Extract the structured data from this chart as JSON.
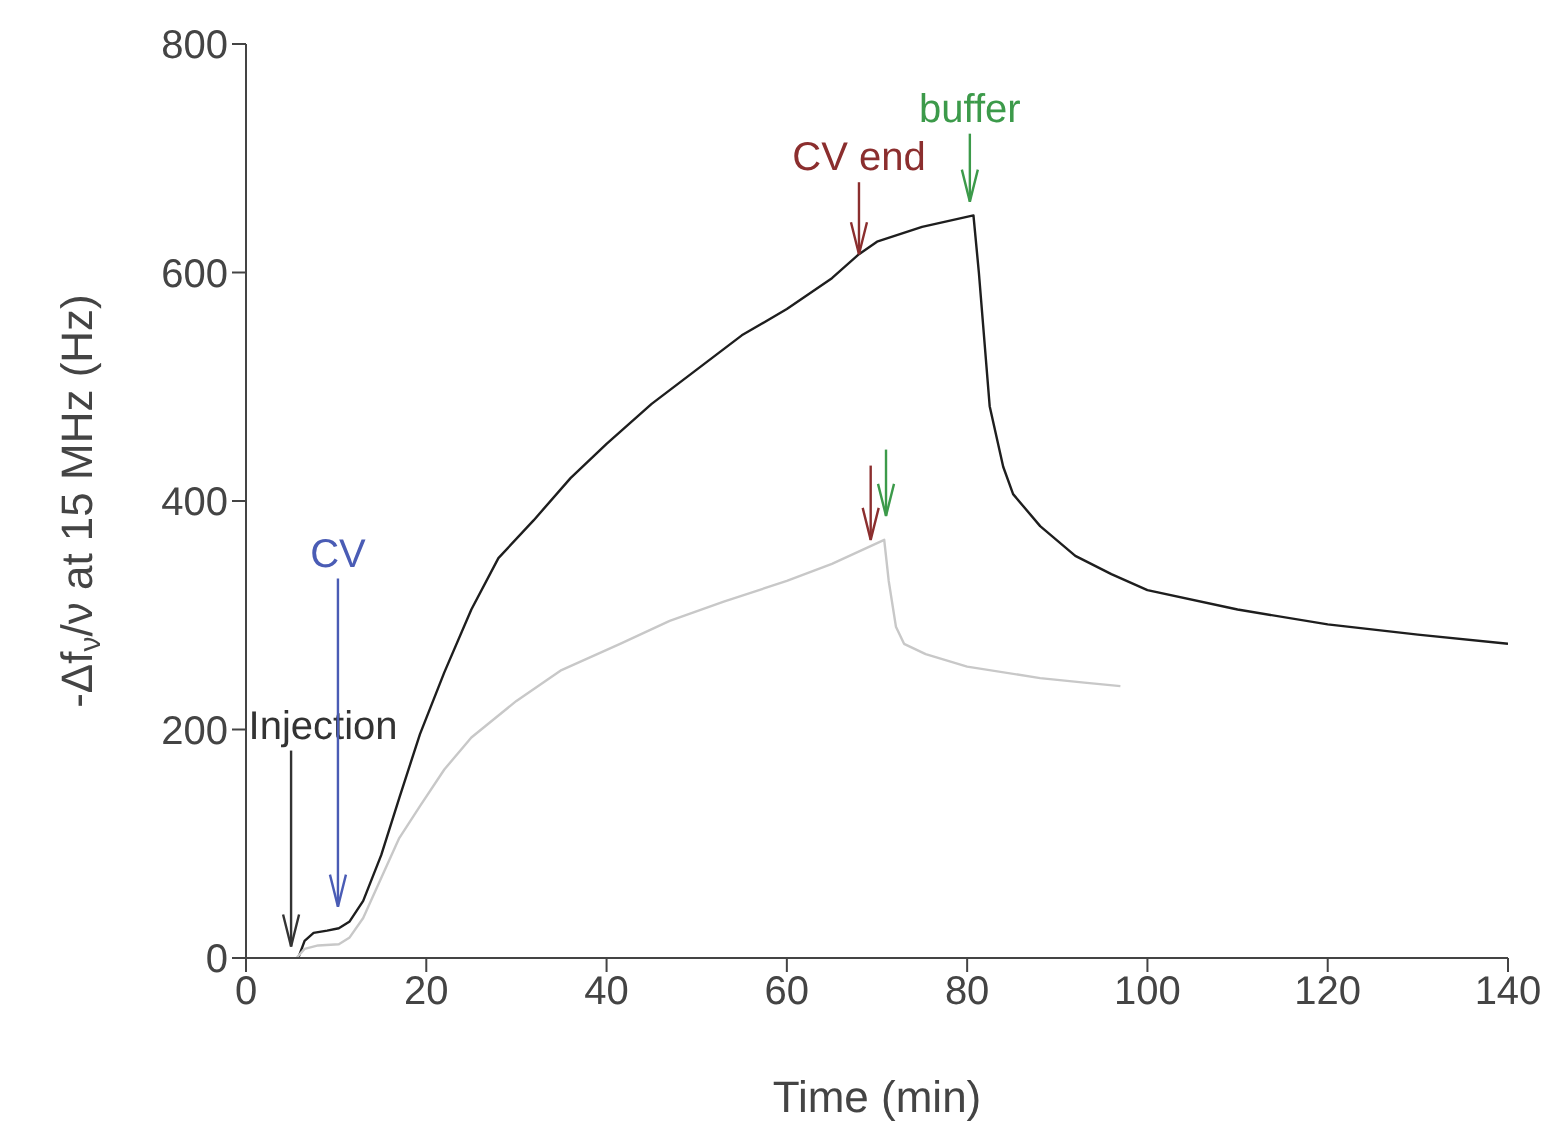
{
  "chart_data": {
    "type": "line",
    "xlabel": "Time (min)",
    "ylabel": "-Δf$_{ν}$/ν at 15 MHz (Hz)",
    "xlim": [
      0,
      140
    ],
    "xticks": [
      0,
      20,
      40,
      60,
      80,
      100,
      120,
      140
    ],
    "ylim": [
      0,
      800
    ],
    "yticks": [
      0,
      200,
      400,
      600,
      800
    ],
    "marker": "none",
    "line_style": "solid",
    "series": [
      {
        "color": "#1e1e1e",
        "x": [
          5.8,
          6.5,
          7.5,
          9,
          10.3,
          11.5,
          13,
          15,
          17,
          19.3,
          22,
          25,
          28,
          31.9,
          36,
          40,
          45,
          50,
          55,
          60,
          65,
          68,
          70,
          75,
          80.7,
          81.3,
          82.5,
          84,
          85.1,
          88.1,
          92,
          96,
          100,
          110,
          120,
          130,
          140
        ],
        "values": [
          0,
          15,
          22,
          24,
          26,
          32,
          50,
          90,
          140,
          196,
          250,
          305,
          350,
          383,
          420,
          450,
          485,
          515,
          545,
          568,
          595,
          616,
          627,
          640,
          650,
          600,
          483,
          430,
          406,
          378,
          352,
          336,
          322,
          305,
          292,
          283,
          275
        ]
      },
      {
        "color": "#c8c8c8",
        "x": [
          5.6,
          6.5,
          8,
          10.3,
          11.5,
          13,
          15,
          17,
          19.3,
          22,
          25,
          30,
          35,
          41.5,
          47,
          53,
          60,
          65,
          70.8,
          71.3,
          72.1,
          73,
          75.4,
          80,
          88.1,
          93,
          97
        ],
        "values": [
          0,
          8,
          11,
          12,
          18,
          35,
          70,
          105,
          133,
          165,
          193,
          225,
          252,
          275,
          295,
          312,
          330,
          345,
          366,
          330,
          290,
          275,
          266,
          255,
          245,
          241,
          238
        ]
      }
    ],
    "annotations": [
      "Injection",
      "CV",
      "CV end",
      "buffer"
    ]
  }
}
